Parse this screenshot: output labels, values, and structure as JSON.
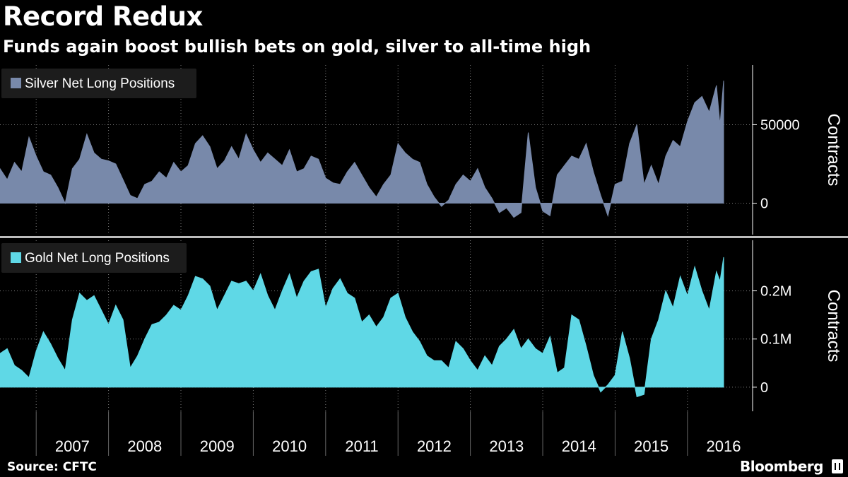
{
  "header": {
    "title": "Record Redux",
    "subtitle": "Funds again boost bullish bets on gold, silver to all-time high"
  },
  "footer": {
    "source": "Source: CFTC",
    "brand": "Bloomberg"
  },
  "colors": {
    "background": "#000000",
    "silver": "#7889aa",
    "gold": "#5fd8e6",
    "grid": "#7a7a7a"
  },
  "chart_data": [
    {
      "type": "area",
      "legend": "Silver Net Long Positions",
      "ylabel": "Contracts",
      "yticks": [
        0,
        50000
      ],
      "ytick_labels": [
        "0",
        "50000"
      ],
      "ylim": [
        -20000,
        88000
      ],
      "xlim": [
        2006.5,
        2016.9
      ],
      "series": [
        {
          "name": "Silver Net Long Positions",
          "x": [
            2006.5,
            2006.6,
            2006.7,
            2006.8,
            2006.9,
            2007.0,
            2007.1,
            2007.2,
            2007.3,
            2007.4,
            2007.5,
            2007.6,
            2007.7,
            2007.8,
            2007.9,
            2008.0,
            2008.1,
            2008.2,
            2008.3,
            2008.4,
            2008.5,
            2008.6,
            2008.7,
            2008.8,
            2008.9,
            2009.0,
            2009.1,
            2009.2,
            2009.3,
            2009.4,
            2009.5,
            2009.6,
            2009.7,
            2009.8,
            2009.9,
            2010.0,
            2010.1,
            2010.2,
            2010.3,
            2010.4,
            2010.5,
            2010.6,
            2010.7,
            2010.8,
            2010.9,
            2011.0,
            2011.1,
            2011.2,
            2011.3,
            2011.4,
            2011.5,
            2011.6,
            2011.7,
            2011.8,
            2011.9,
            2012.0,
            2012.1,
            2012.2,
            2012.3,
            2012.4,
            2012.5,
            2012.6,
            2012.7,
            2012.8,
            2012.9,
            2013.0,
            2013.1,
            2013.2,
            2013.3,
            2013.4,
            2013.5,
            2013.6,
            2013.7,
            2013.8,
            2013.9,
            2014.0,
            2014.1,
            2014.2,
            2014.3,
            2014.4,
            2014.5,
            2014.6,
            2014.7,
            2014.8,
            2014.9,
            2015.0,
            2015.1,
            2015.2,
            2015.3,
            2015.4,
            2015.5,
            2015.6,
            2015.7,
            2015.8,
            2015.9,
            2016.0,
            2016.1,
            2016.2,
            2016.3,
            2016.4,
            2016.45,
            2016.5
          ],
          "values": [
            22000,
            15000,
            26000,
            20000,
            42000,
            30000,
            20000,
            18000,
            10000,
            0,
            22000,
            28000,
            44000,
            32000,
            28000,
            27000,
            25000,
            15000,
            5000,
            3000,
            12000,
            14000,
            20000,
            16000,
            26000,
            20000,
            24000,
            38000,
            43000,
            36000,
            22000,
            27000,
            36000,
            28000,
            44000,
            34000,
            26000,
            32000,
            28000,
            24000,
            34000,
            20000,
            22000,
            30000,
            28000,
            16000,
            13000,
            12000,
            20000,
            26000,
            18000,
            10000,
            4000,
            12000,
            18000,
            38000,
            32000,
            28000,
            26000,
            12000,
            4000,
            -2000,
            2000,
            12000,
            18000,
            14000,
            22000,
            10000,
            3000,
            -6000,
            -3000,
            -9000,
            -6000,
            45000,
            10000,
            -5000,
            -8000,
            18000,
            24000,
            30000,
            28000,
            38000,
            20000,
            5000,
            -8000,
            12000,
            14000,
            38000,
            50000,
            12000,
            24000,
            12000,
            30000,
            40000,
            36000,
            52000,
            64000,
            68000,
            58000,
            75000,
            50000,
            78000
          ]
        }
      ],
      "x_tick_labels": [
        "2007",
        "2008",
        "2009",
        "2010",
        "2011",
        "2012",
        "2013",
        "2014",
        "2015",
        "2016"
      ]
    },
    {
      "type": "area",
      "legend": "Gold Net Long Positions",
      "ylabel": "Contracts",
      "yticks": [
        0,
        100000,
        200000
      ],
      "ytick_labels": [
        "0",
        "0.1M",
        "0.2M"
      ],
      "ylim": [
        -50000,
        305000
      ],
      "xlim": [
        2006.5,
        2016.9
      ],
      "series": [
        {
          "name": "Gold Net Long Positions",
          "x": [
            2006.5,
            2006.6,
            2006.7,
            2006.8,
            2006.9,
            2007.0,
            2007.1,
            2007.2,
            2007.3,
            2007.4,
            2007.5,
            2007.6,
            2007.7,
            2007.8,
            2007.9,
            2008.0,
            2008.1,
            2008.2,
            2008.3,
            2008.4,
            2008.5,
            2008.6,
            2008.7,
            2008.8,
            2008.9,
            2009.0,
            2009.1,
            2009.2,
            2009.3,
            2009.4,
            2009.5,
            2009.6,
            2009.7,
            2009.8,
            2009.9,
            2010.0,
            2010.1,
            2010.2,
            2010.3,
            2010.4,
            2010.5,
            2010.6,
            2010.7,
            2010.8,
            2010.9,
            2011.0,
            2011.1,
            2011.2,
            2011.3,
            2011.4,
            2011.5,
            2011.6,
            2011.7,
            2011.8,
            2011.9,
            2012.0,
            2012.1,
            2012.2,
            2012.3,
            2012.4,
            2012.5,
            2012.6,
            2012.7,
            2012.8,
            2012.9,
            2013.0,
            2013.1,
            2013.2,
            2013.3,
            2013.4,
            2013.5,
            2013.6,
            2013.7,
            2013.8,
            2013.9,
            2014.0,
            2014.1,
            2014.2,
            2014.3,
            2014.4,
            2014.5,
            2014.6,
            2014.7,
            2014.8,
            2014.9,
            2015.0,
            2015.1,
            2015.2,
            2015.3,
            2015.4,
            2015.5,
            2015.6,
            2015.7,
            2015.8,
            2015.9,
            2016.0,
            2016.1,
            2016.2,
            2016.3,
            2016.4,
            2016.45,
            2016.5
          ],
          "values": [
            70000,
            80000,
            45000,
            35000,
            20000,
            75000,
            115000,
            90000,
            60000,
            35000,
            140000,
            195000,
            180000,
            190000,
            160000,
            130000,
            170000,
            140000,
            40000,
            65000,
            100000,
            130000,
            135000,
            150000,
            170000,
            160000,
            190000,
            230000,
            225000,
            210000,
            160000,
            190000,
            220000,
            215000,
            220000,
            200000,
            235000,
            190000,
            160000,
            200000,
            235000,
            185000,
            220000,
            240000,
            245000,
            165000,
            205000,
            225000,
            195000,
            185000,
            135000,
            150000,
            125000,
            145000,
            185000,
            195000,
            145000,
            115000,
            95000,
            65000,
            55000,
            55000,
            40000,
            95000,
            80000,
            55000,
            35000,
            65000,
            45000,
            85000,
            100000,
            120000,
            80000,
            100000,
            80000,
            70000,
            105000,
            30000,
            40000,
            150000,
            140000,
            85000,
            25000,
            -10000,
            5000,
            25000,
            115000,
            60000,
            -20000,
            -15000,
            100000,
            140000,
            200000,
            165000,
            230000,
            190000,
            250000,
            200000,
            160000,
            240000,
            220000,
            270000
          ]
        }
      ],
      "x_tick_labels": [
        "2007",
        "2008",
        "2009",
        "2010",
        "2011",
        "2012",
        "2013",
        "2014",
        "2015",
        "2016"
      ]
    }
  ]
}
